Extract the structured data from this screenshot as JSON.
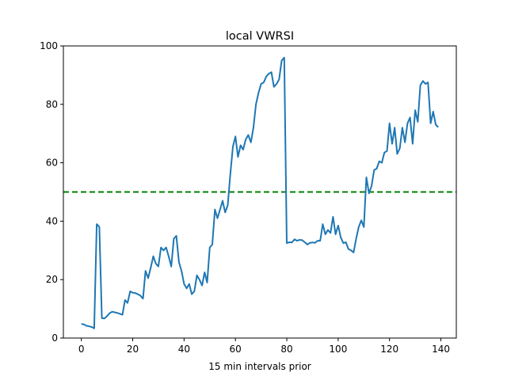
{
  "chart_data": {
    "type": "line",
    "title": "local VWRSI",
    "xlabel": "15 min intervals prior",
    "ylabel": "",
    "xlim": [
      -7,
      146
    ],
    "ylim": [
      0,
      100
    ],
    "xticks": [
      0,
      20,
      40,
      60,
      80,
      100,
      120,
      140
    ],
    "yticks": [
      0,
      20,
      40,
      60,
      80,
      100
    ],
    "grid": false,
    "series": [
      {
        "name": "local VWRSI",
        "color": "#1f77b4",
        "values": [
          4.8,
          4.7,
          4.2,
          4.0,
          3.8,
          3.3,
          39,
          38,
          6.8,
          6.7,
          7.5,
          8.5,
          9,
          8.8,
          8.6,
          8.3,
          8,
          13,
          12,
          16,
          15.5,
          15.4,
          15,
          14.5,
          13.5,
          23,
          20.5,
          24,
          28,
          25.5,
          24.5,
          31,
          30,
          31,
          28,
          24.5,
          34,
          35,
          26,
          23,
          18.5,
          17,
          18.5,
          15,
          16,
          21.5,
          20,
          18,
          22.5,
          19,
          31,
          32,
          44,
          41,
          44,
          47,
          43,
          45.5,
          56,
          65.5,
          69,
          62,
          66,
          64.5,
          68,
          69.5,
          67,
          72,
          80,
          84,
          87,
          87.5,
          89.5,
          90.5,
          91,
          86,
          87,
          88.5,
          95,
          96,
          32.5,
          32.8,
          32.7,
          33.8,
          33.3,
          33.6,
          33.5,
          32.8,
          32,
          32.6,
          32.7,
          32.6,
          33.3,
          33.3,
          39,
          35.5,
          37,
          36,
          41.5,
          35.5,
          38.5,
          34.5,
          32.5,
          32.8,
          30.5,
          30,
          29.3,
          34,
          38,
          40.3,
          38,
          55,
          49.5,
          52,
          57.5,
          58,
          60.5,
          60,
          63.5,
          64,
          73.5,
          66.5,
          72,
          63,
          65,
          72,
          67,
          73.5,
          75.5,
          66.5,
          78,
          74,
          86.5,
          88,
          87,
          87.5,
          73.5,
          77.5,
          73,
          72.2
        ]
      }
    ],
    "hlines": [
      {
        "y": 50,
        "color": "#008000",
        "style": "dashed"
      }
    ]
  }
}
